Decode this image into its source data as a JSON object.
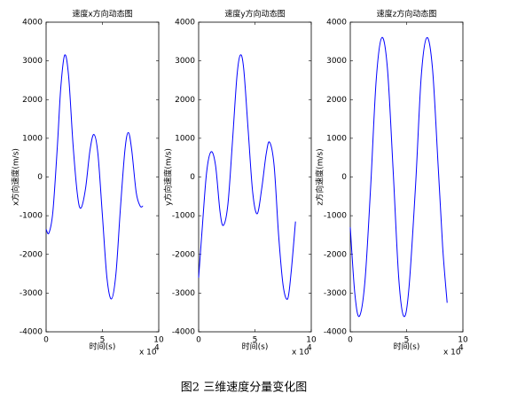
{
  "caption": "图2  三维速度分量变化图",
  "chart_data": [
    {
      "type": "line",
      "title": "速度x方向动态图",
      "x_label": "时间(s)",
      "y_label": "x方向速度(m/s)",
      "x_multiplier": "x 10",
      "x_exponent": "4",
      "xlim": [
        0,
        10
      ],
      "xticks": [
        0,
        5,
        10
      ],
      "ylim": [
        -4000,
        4000
      ],
      "yticks": [
        -4000,
        -3000,
        -2000,
        -1000,
        0,
        1000,
        2000,
        3000,
        4000
      ],
      "x": [
        0,
        0.25,
        0.6,
        1.0,
        1.3,
        1.65,
        2.0,
        2.4,
        2.8,
        3.1,
        3.5,
        3.9,
        4.25,
        4.6,
        5.0,
        5.4,
        5.8,
        6.2,
        6.6,
        7.0,
        7.3,
        7.6,
        8.0,
        8.35,
        8.6
      ],
      "series": [
        {
          "color": "#0000ff",
          "values": [
            -1350,
            -1450,
            -900,
            800,
            2300,
            3150,
            2600,
            800,
            -500,
            -800,
            -300,
            700,
            1100,
            600,
            -1000,
            -2600,
            -3150,
            -2500,
            -800,
            700,
            1150,
            700,
            -400,
            -750,
            -750
          ]
        }
      ]
    },
    {
      "type": "line",
      "title": "速度y方向动态图",
      "x_label": "时间(s)",
      "y_label": "y方向速度(m/s)",
      "x_multiplier": "x 10",
      "x_exponent": "4",
      "xlim": [
        0,
        10
      ],
      "xticks": [
        0,
        5,
        10
      ],
      "ylim": [
        -4000,
        4000
      ],
      "yticks": [
        -4000,
        -3000,
        -2000,
        -1000,
        0,
        1000,
        2000,
        3000,
        4000
      ],
      "x": [
        0,
        0.3,
        0.7,
        1.1,
        1.5,
        1.9,
        2.2,
        2.6,
        3.0,
        3.4,
        3.7,
        4.0,
        4.4,
        4.8,
        5.2,
        5.6,
        6.0,
        6.3,
        6.7,
        7.1,
        7.5,
        7.9,
        8.2,
        8.6
      ],
      "series": [
        {
          "color": "#0000ff",
          "values": [
            -2600,
            -1400,
            100,
            650,
            300,
            -900,
            -1250,
            -700,
            900,
            2600,
            3150,
            2800,
            1200,
            -400,
            -950,
            -300,
            600,
            900,
            300,
            -1500,
            -2800,
            -3150,
            -2500,
            -1150
          ]
        }
      ]
    },
    {
      "type": "line",
      "title": "速度z方向动态图",
      "x_label": "时间(s)",
      "y_label": "z方向速度(m/s)",
      "x_multiplier": "x 10",
      "x_exponent": "4",
      "xlim": [
        0,
        10
      ],
      "xticks": [
        0,
        5,
        10
      ],
      "ylim": [
        -4000,
        4000
      ],
      "yticks": [
        -4000,
        -3000,
        -2000,
        -1000,
        0,
        1000,
        2000,
        3000,
        4000
      ],
      "x": [
        0,
        0.4,
        0.8,
        1.3,
        1.8,
        2.3,
        2.8,
        3.3,
        3.8,
        4.3,
        4.75,
        5.2,
        5.8,
        6.3,
        6.8,
        7.3,
        7.8,
        8.2,
        8.6
      ],
      "series": [
        {
          "color": "#0000ff",
          "values": [
            -1300,
            -3000,
            -3600,
            -2700,
            -300,
            2500,
            3600,
            2800,
            200,
            -2600,
            -3600,
            -2900,
            -200,
            2600,
            3600,
            2800,
            300,
            -1800,
            -3250
          ]
        }
      ]
    }
  ]
}
